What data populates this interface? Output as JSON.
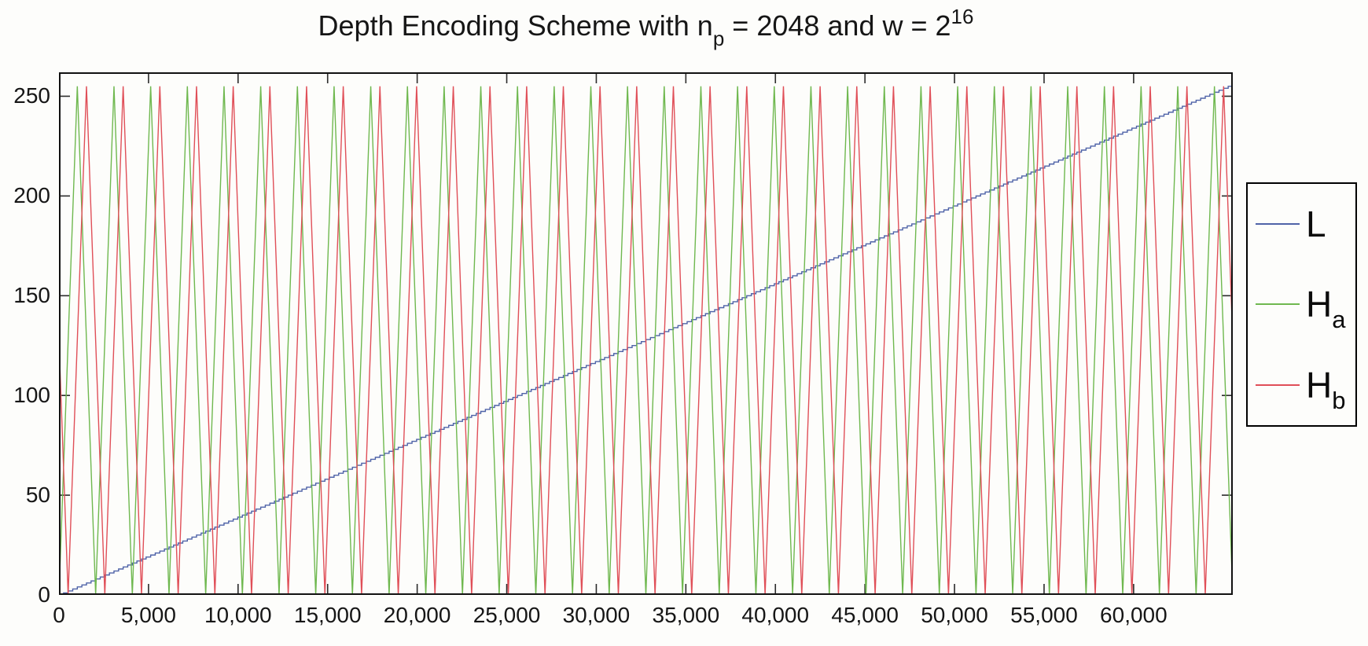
{
  "figure": {
    "title": {
      "part1": "Depth Encoding Scheme with n",
      "sub1": "p",
      "part2": " = 2048 and w = 2",
      "sup1": "16"
    }
  },
  "legend": {
    "entries": [
      {
        "main": "L",
        "sub": ""
      },
      {
        "main": "H",
        "sub": "a"
      },
      {
        "main": "H",
        "sub": "b"
      }
    ]
  },
  "colors": {
    "background": "#fdfdfb",
    "axes": "#111111",
    "tick": "#2b2b2b",
    "label_text": "#161616"
  },
  "chart_data": {
    "type": "line",
    "title": "Depth Encoding Scheme with n_p = 2048 and w = 2^16",
    "xlabel": "",
    "ylabel": "",
    "xlim": [
      0,
      65536
    ],
    "ylim": [
      0,
      262
    ],
    "grid": false,
    "legend_position": "right-outside",
    "x_ticks": [
      0,
      5000,
      10000,
      15000,
      20000,
      25000,
      30000,
      35000,
      40000,
      45000,
      50000,
      55000,
      60000
    ],
    "x_tick_labels": [
      "0",
      "5,000",
      "10,000",
      "15,000",
      "20,000",
      "25,000",
      "30,000",
      "35,000",
      "40,000",
      "45,000",
      "50,000",
      "55,000",
      "60,000"
    ],
    "y_ticks": [
      0,
      50,
      100,
      150,
      200,
      250
    ],
    "y_tick_labels": [
      "0",
      "50",
      "100",
      "150",
      "200",
      "250"
    ],
    "series": [
      {
        "name": "L",
        "color": "#4f63a8",
        "generator": "staircase",
        "levels": 256,
        "step_width": 256,
        "endpoints": [
          [
            0,
            0
          ],
          [
            65536,
            255
          ]
        ],
        "description": "Linear depth ramp L(d)=floor(d/256), rising 0 to 255 across d=0..65536, drawn as 256 small steps"
      },
      {
        "name": "H_a",
        "color": "#6fb84f",
        "generator": "triangle",
        "period": 2048,
        "phase": 0,
        "amplitude": 255,
        "endpoints": [
          [
            0,
            0
          ],
          [
            65536,
            0
          ]
        ],
        "keypoints_rule": "zeros at d=2048k (k=0..32), peaks of 255 at d=1024+2048k (k=0..31)",
        "description": "Fine-level triangle wave H_a with period 2048, starting at 0 and rising"
      },
      {
        "name": "H_b",
        "color": "#e04f58",
        "generator": "triangle",
        "period": 2048,
        "phase": 512,
        "amplitude": 255,
        "endpoints": [
          [
            0,
            128
          ],
          [
            65536,
            128
          ]
        ],
        "keypoints_rule": "zeros at d=512+2048k (k=0..31), peaks of 255 at d=1536+2048k (k=0..31); value 128 at both d=0 and d=65536",
        "description": "Fine-level triangle wave H_b = H_a shifted right by 512 (quarter period), starting at 128 and descending"
      }
    ]
  }
}
